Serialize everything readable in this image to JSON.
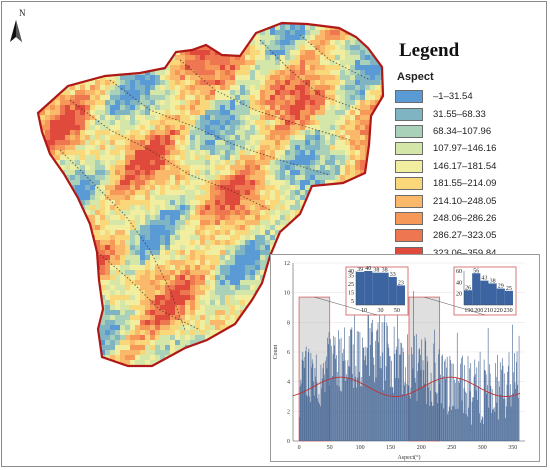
{
  "map": {
    "north_label": "N"
  },
  "legend": {
    "title": "Legend",
    "subtitle": "Aspect",
    "classes": [
      {
        "label": "–1–31.54",
        "color": "#5b9bd5"
      },
      {
        "label": "31.55–68.33",
        "color": "#7fb4c2"
      },
      {
        "label": "68.34–107.96",
        "color": "#a9d0b8"
      },
      {
        "label": "107.97–146.16",
        "color": "#d5e7a8"
      },
      {
        "label": "146.17–181.54",
        "color": "#f1ef9f"
      },
      {
        "label": "181.55–214.09",
        "color": "#fad87a"
      },
      {
        "label": "214.10–248.05",
        "color": "#f9b86a"
      },
      {
        "label": "248.06–286.26",
        "color": "#f59858"
      },
      {
        "label": "286.27–323.05",
        "color": "#ee7650"
      },
      {
        "label": "323.06–359.84",
        "color": "#e04a3c"
      }
    ]
  },
  "chart_data": {
    "type": "bar",
    "xlabel": "Aspect(°)",
    "ylabel": "Count",
    "xlim": [
      -10,
      370
    ],
    "ylim": [
      0,
      12
    ],
    "x_ticks": [
      0,
      50,
      100,
      150,
      200,
      250,
      300,
      350
    ],
    "y_ticks": [
      0,
      2,
      4,
      6,
      8,
      10,
      12
    ],
    "highlight_ranges": [
      [
        0,
        50
      ],
      [
        180,
        230
      ]
    ],
    "insets": [
      {
        "x_ticks": [
          10,
          30,
          50
        ],
        "y_ticks": [
          5,
          15,
          25,
          35,
          40
        ],
        "ylim": [
          0,
          40
        ],
        "bar_labels": [
          "39",
          "40",
          "38",
          "38",
          "33",
          "23"
        ],
        "bar_values": [
          39,
          40,
          38,
          38,
          33,
          23
        ],
        "bar_colors": [
          "#3b64a0",
          "#3b64a0",
          "#3b64a0",
          "#3b64a0",
          "#3b64a0",
          "#3b64a0"
        ]
      },
      {
        "x_ticks": [
          190,
          200,
          210,
          220,
          230
        ],
        "y_ticks": [
          20,
          40,
          60
        ],
        "ylim": [
          0,
          60
        ],
        "bar_labels": [
          "26",
          "56",
          "43",
          "38",
          "29",
          "25"
        ],
        "bar_values": [
          26,
          56,
          43,
          38,
          29,
          25
        ],
        "bar_colors": [
          "#3b64a0",
          "#3b64a0",
          "#3b64a0",
          "#3b64a0",
          "#3b64a0",
          "#3b64a0"
        ]
      }
    ]
  }
}
